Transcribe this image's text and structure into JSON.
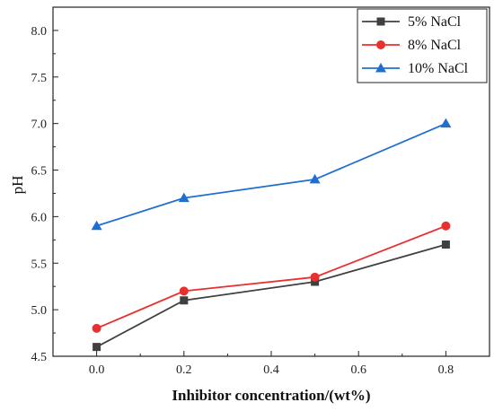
{
  "chart_data": {
    "type": "line",
    "xlabel": "Inhibitor concentration/(wt%)",
    "ylabel": "pH",
    "xlim": [
      -0.1,
      0.9
    ],
    "ylim": [
      4.5,
      8.25
    ],
    "x_ticks": [
      0.0,
      0.2,
      0.4,
      0.6,
      0.8
    ],
    "x_tick_labels": [
      "0.0",
      "0.2",
      "0.4",
      "0.6",
      "0.8"
    ],
    "y_ticks": [
      4.5,
      5.0,
      5.5,
      6.0,
      6.5,
      7.0,
      7.5,
      8.0
    ],
    "y_tick_labels": [
      "4.5",
      "5.0",
      "5.5",
      "6.0",
      "6.5",
      "7.0",
      "7.5",
      "8.0"
    ],
    "grid": false,
    "legend_position": "top-right",
    "series": [
      {
        "name": "5% NaCl",
        "color": "#404040",
        "marker": "square",
        "x": [
          0.0,
          0.2,
          0.5,
          0.8
        ],
        "y": [
          4.6,
          5.1,
          5.3,
          5.7
        ]
      },
      {
        "name": "8% NaCl",
        "color": "#e8302e",
        "marker": "circle",
        "x": [
          0.0,
          0.2,
          0.5,
          0.8
        ],
        "y": [
          4.8,
          5.2,
          5.35,
          5.9
        ]
      },
      {
        "name": "10% NaCl",
        "color": "#1f6fd1",
        "marker": "triangle",
        "x": [
          0.0,
          0.2,
          0.5,
          0.8
        ],
        "y": [
          5.9,
          6.2,
          6.4,
          7.0
        ]
      }
    ]
  }
}
